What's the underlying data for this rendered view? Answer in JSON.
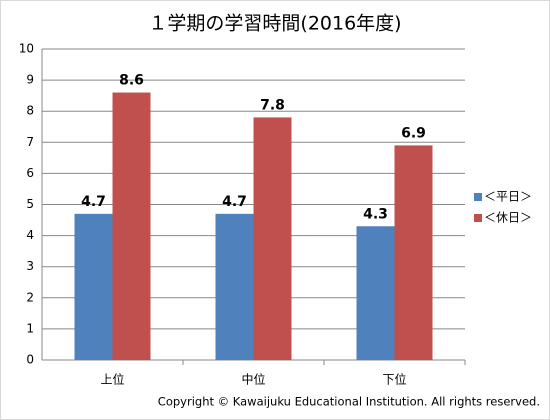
{
  "chart_data": {
    "type": "bar",
    "title": "１学期の学習時間(2016年度)",
    "categories": [
      "上位",
      "中位",
      "下位"
    ],
    "series": [
      {
        "name": "＜平日＞",
        "color": "#4f81bd",
        "values": [
          4.7,
          4.7,
          4.3
        ]
      },
      {
        "name": "＜休日＞",
        "color": "#c0504d",
        "values": [
          8.6,
          7.8,
          6.9
        ]
      }
    ],
    "ylim": [
      0,
      10
    ],
    "yticks": [
      0,
      1,
      2,
      3,
      4,
      5,
      6,
      7,
      8,
      9,
      10
    ],
    "grid": true,
    "legend": "right",
    "footer": "Copyright © Kawaijuku Educational Institution.  All rights reserved."
  }
}
